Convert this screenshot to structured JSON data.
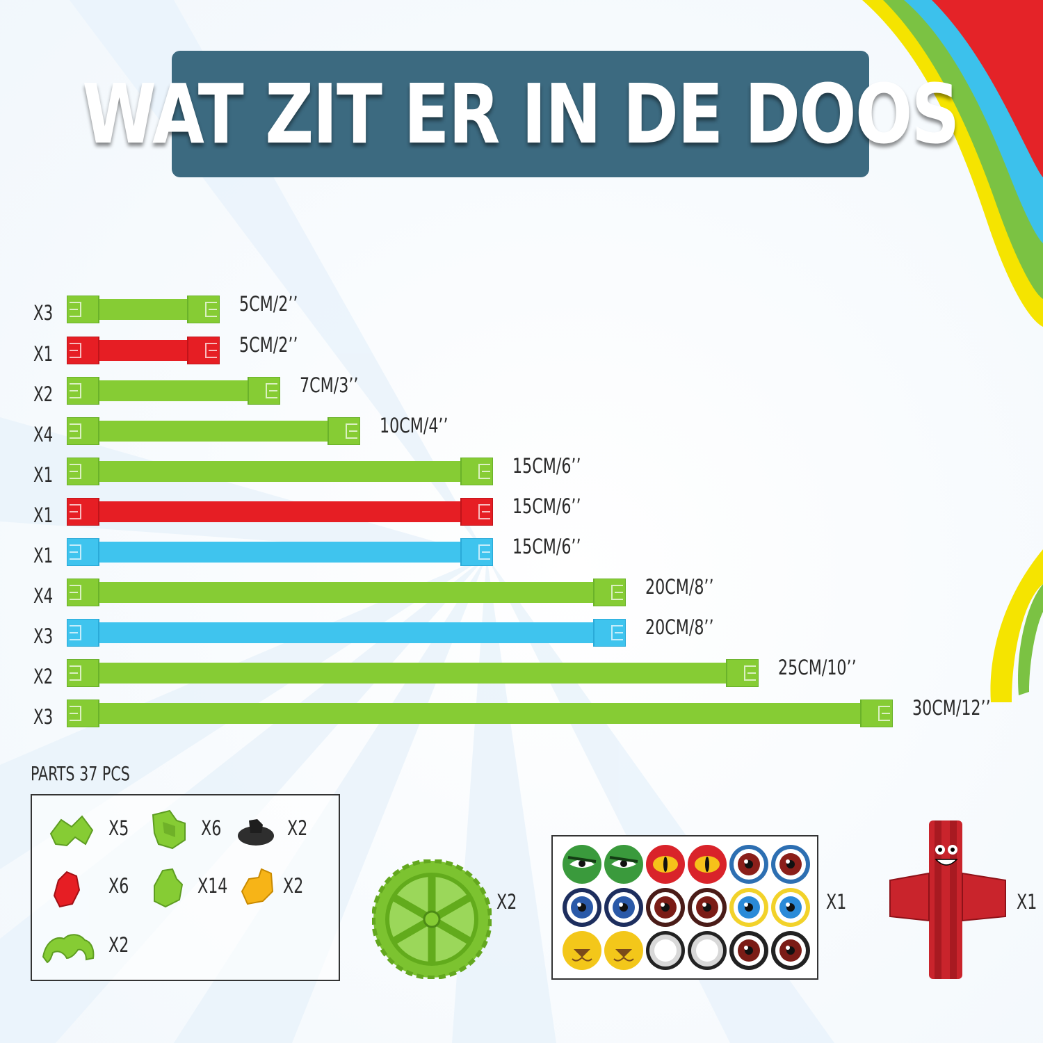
{
  "title": "WAT ZIT ER IN DE DOOS",
  "colors": {
    "green": "#86cc34",
    "red": "#e61e24",
    "blue": "#3fc4ee",
    "title_bg": "#3c6a80"
  },
  "bars": [
    {
      "qty": "X3",
      "length": "5CM/2’’",
      "color": "green"
    },
    {
      "qty": "X1",
      "length": "5CM/2’’",
      "color": "red"
    },
    {
      "qty": "X2",
      "length": "7CM/3’’",
      "color": "green"
    },
    {
      "qty": "X4",
      "length": "10CM/4’’",
      "color": "green"
    },
    {
      "qty": "X1",
      "length": "15CM/6’’",
      "color": "green"
    },
    {
      "qty": "X1",
      "length": "15CM/6’’",
      "color": "red"
    },
    {
      "qty": "X1",
      "length": "15CM/6’’",
      "color": "blue"
    },
    {
      "qty": "X4",
      "length": "20CM/8’’",
      "color": "green"
    },
    {
      "qty": "X3",
      "length": "20CM/8’’",
      "color": "blue"
    },
    {
      "qty": "X2",
      "length": "25CM/10’’",
      "color": "green"
    },
    {
      "qty": "X3",
      "length": "30CM/12’’",
      "color": "green"
    }
  ],
  "parts": {
    "label": "PARTS  37 PCS",
    "items": [
      {
        "qty": "X5",
        "icon": "green-connector-icon"
      },
      {
        "qty": "X6",
        "icon": "green-clip-icon"
      },
      {
        "qty": "X2",
        "icon": "black-base-icon"
      },
      {
        "qty": "X6",
        "icon": "red-joint-icon"
      },
      {
        "qty": "X14",
        "icon": "green-joint-icon"
      },
      {
        "qty": "X2",
        "icon": "yellow-joint-icon"
      },
      {
        "qty": "X2",
        "icon": "green-triple-clip-icon"
      }
    ]
  },
  "wheel": {
    "qty": "X2",
    "icon": "green-wheel-icon"
  },
  "eye_stickers": {
    "qty": "X1",
    "icon": "eye-sticker-sheet-icon"
  },
  "character": {
    "qty": "X1",
    "icon": "red-character-icon"
  }
}
